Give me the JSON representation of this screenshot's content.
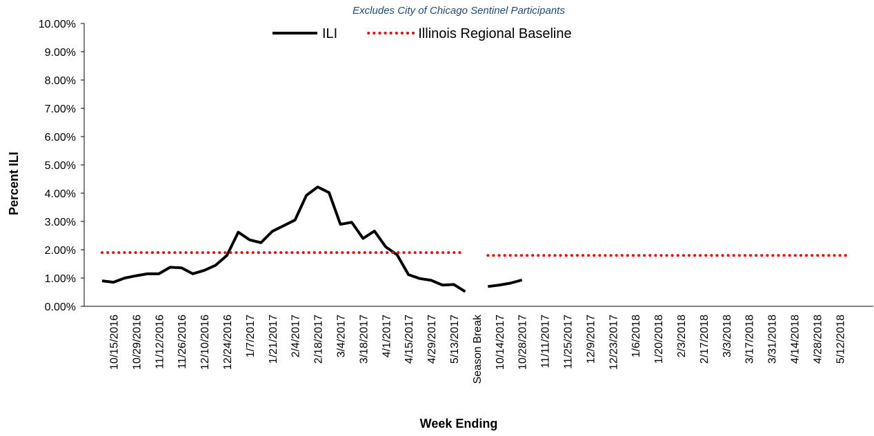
{
  "chart_data": {
    "type": "line",
    "subtitle": "Excludes City of Chicago Sentinel Participants",
    "x_label": "Week Ending",
    "y_label": "Percent ILI",
    "categories": [
      null,
      "10/15/2016",
      null,
      "10/29/2016",
      null,
      "11/12/2016",
      null,
      "11/26/2016",
      null,
      "12/10/2016",
      null,
      "12/24/2016",
      null,
      "1/7/2017",
      null,
      "1/21/2017",
      null,
      "2/4/2017",
      null,
      "2/18/2017",
      null,
      "3/4/2017",
      null,
      "3/18/2017",
      null,
      "4/1/2017",
      null,
      "4/15/2017",
      null,
      "4/29/2017",
      null,
      "5/13/2017",
      null,
      "Season Break",
      null,
      "10/14/2017",
      null,
      "10/28/2017",
      null,
      "11/11/2017",
      null,
      "11/25/2017",
      null,
      "12/9/2017",
      null,
      "12/23/2017",
      null,
      "1/6/2018",
      null,
      "1/20/2018",
      null,
      "2/3/2018",
      null,
      "2/17/2018",
      null,
      "3/3/2018",
      null,
      "3/17/2018",
      null,
      "3/31/2018",
      null,
      "4/14/2018",
      null,
      "4/28/2018",
      null,
      "5/12/2018",
      null
    ],
    "series": [
      {
        "name": "ILI",
        "color": "#000000",
        "line_style": "solid",
        "values": [
          0.9,
          0.85,
          1.0,
          1.08,
          1.15,
          1.15,
          1.38,
          1.36,
          1.15,
          1.27,
          1.45,
          1.8,
          2.62,
          2.35,
          2.25,
          2.65,
          2.85,
          3.05,
          3.92,
          4.22,
          4.02,
          2.9,
          2.97,
          2.4,
          2.66,
          2.1,
          1.82,
          1.12,
          0.98,
          0.92,
          0.75,
          0.77,
          0.52,
          null,
          0.7,
          0.75,
          0.82,
          0.93,
          null,
          null,
          null,
          null,
          null,
          null,
          null,
          null,
          null,
          null,
          null,
          null,
          null,
          null,
          null,
          null,
          null,
          null,
          null,
          null,
          null,
          null,
          null,
          null,
          null,
          null,
          null,
          null,
          null
        ]
      },
      {
        "name": "Illinois Regional Baseline",
        "color": "#ff0000",
        "line_style": "dotted",
        "values": [
          1.9,
          1.9,
          1.9,
          1.9,
          1.9,
          1.9,
          1.9,
          1.9,
          1.9,
          1.9,
          1.9,
          1.9,
          1.9,
          1.9,
          1.9,
          1.9,
          1.9,
          1.9,
          1.9,
          1.9,
          1.9,
          1.9,
          1.9,
          1.9,
          1.9,
          1.9,
          1.9,
          1.9,
          1.9,
          1.9,
          1.9,
          1.9,
          1.9,
          null,
          1.8,
          1.8,
          1.8,
          1.8,
          1.8,
          1.8,
          1.8,
          1.8,
          1.8,
          1.8,
          1.8,
          1.8,
          1.8,
          1.8,
          1.8,
          1.8,
          1.8,
          1.8,
          1.8,
          1.8,
          1.8,
          1.8,
          1.8,
          1.8,
          1.8,
          1.8,
          1.8,
          1.8,
          1.8,
          1.8,
          1.8,
          1.8,
          1.8
        ]
      }
    ],
    "ylim": [
      0,
      10
    ],
    "yticks": [
      {
        "value": 0,
        "label": "0.00%"
      },
      {
        "value": 1,
        "label": "1.00%"
      },
      {
        "value": 2,
        "label": "2.00%"
      },
      {
        "value": 3,
        "label": "3.00%"
      },
      {
        "value": 4,
        "label": "4.00%"
      },
      {
        "value": 5,
        "label": "5.00%"
      },
      {
        "value": 6,
        "label": "6.00%"
      },
      {
        "value": 7,
        "label": "7.00%"
      },
      {
        "value": 8,
        "label": "8.00%"
      },
      {
        "value": 9,
        "label": "9.00%"
      },
      {
        "value": 10,
        "label": "10.00%"
      }
    ],
    "grid": false,
    "legend": "top"
  }
}
